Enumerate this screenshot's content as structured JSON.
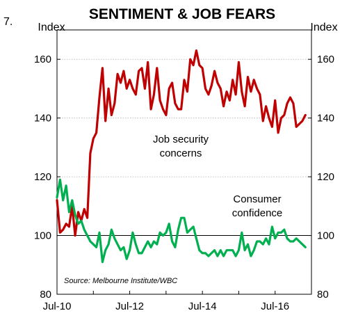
{
  "chart_data": {
    "type": "line",
    "figure_number": "7.",
    "title": "SENTIMENT & JOB FEARS",
    "ylabel_left": "Index",
    "ylabel_right": "Index",
    "ylim": [
      80,
      170
    ],
    "yticks": [
      80,
      100,
      120,
      140,
      160
    ],
    "xlim": [
      "2010-07",
      "2017-07"
    ],
    "xticks": [
      "Jul-10",
      "Jul-12",
      "Jul-14",
      "Jul-16"
    ],
    "source": "Source: Melbourne Institute/WBC",
    "reference_line": 100,
    "series": [
      {
        "name": "Job security concerns",
        "label_lines": [
          "Job security",
          "concerns"
        ],
        "color": "#C00000",
        "x": [
          "2010-07",
          "2010-08",
          "2010-09",
          "2010-10",
          "2010-11",
          "2010-12",
          "2011-01",
          "2011-02",
          "2011-03",
          "2011-04",
          "2011-05",
          "2011-06",
          "2011-07",
          "2011-08",
          "2011-09",
          "2011-10",
          "2011-11",
          "2011-12",
          "2012-01",
          "2012-02",
          "2012-03",
          "2012-04",
          "2012-05",
          "2012-06",
          "2012-07",
          "2012-08",
          "2012-09",
          "2012-10",
          "2012-11",
          "2012-12",
          "2013-01",
          "2013-02",
          "2013-03",
          "2013-04",
          "2013-05",
          "2013-06",
          "2013-07",
          "2013-08",
          "2013-09",
          "2013-10",
          "2013-11",
          "2013-12",
          "2014-01",
          "2014-02",
          "2014-03",
          "2014-04",
          "2014-05",
          "2014-06",
          "2014-07",
          "2014-08",
          "2014-09",
          "2014-10",
          "2014-11",
          "2014-12",
          "2015-01",
          "2015-02",
          "2015-03",
          "2015-04",
          "2015-05",
          "2015-06",
          "2015-07",
          "2015-08",
          "2015-09",
          "2015-10",
          "2015-11",
          "2015-12",
          "2016-01",
          "2016-02",
          "2016-03",
          "2016-04",
          "2016-05",
          "2016-06",
          "2016-07",
          "2016-08",
          "2016-09",
          "2016-10",
          "2016-11",
          "2016-12",
          "2017-01",
          "2017-02",
          "2017-03",
          "2017-04",
          "2017-05"
        ],
        "values": [
          112,
          101,
          102,
          104,
          103,
          110,
          100,
          108,
          105,
          109,
          106,
          128,
          133,
          135,
          147,
          157,
          139,
          150,
          141,
          145,
          155,
          152,
          156,
          150,
          153,
          150,
          148,
          156,
          157,
          150,
          159,
          143,
          148,
          157,
          146,
          143,
          141,
          150,
          152,
          145,
          143,
          143,
          153,
          149,
          160,
          158,
          163,
          158,
          157,
          150,
          148,
          151,
          156,
          152,
          150,
          144,
          149,
          146,
          153,
          148,
          159,
          149,
          144,
          154,
          149,
          153,
          150,
          148,
          139,
          144,
          140,
          137,
          146,
          135,
          140,
          141,
          145,
          147,
          145,
          137,
          138,
          139,
          141
        ]
      },
      {
        "name": "Consumer confidence",
        "label_lines": [
          "Consumer",
          "confidence"
        ],
        "color": "#00B050",
        "x": [
          "2010-07",
          "2010-08",
          "2010-09",
          "2010-10",
          "2010-11",
          "2010-12",
          "2011-01",
          "2011-02",
          "2011-03",
          "2011-04",
          "2011-05",
          "2011-06",
          "2011-07",
          "2011-08",
          "2011-09",
          "2011-10",
          "2011-11",
          "2011-12",
          "2012-01",
          "2012-02",
          "2012-03",
          "2012-04",
          "2012-05",
          "2012-06",
          "2012-07",
          "2012-08",
          "2012-09",
          "2012-10",
          "2012-11",
          "2012-12",
          "2013-01",
          "2013-02",
          "2013-03",
          "2013-04",
          "2013-05",
          "2013-06",
          "2013-07",
          "2013-08",
          "2013-09",
          "2013-10",
          "2013-11",
          "2013-12",
          "2014-01",
          "2014-02",
          "2014-03",
          "2014-04",
          "2014-05",
          "2014-06",
          "2014-07",
          "2014-08",
          "2014-09",
          "2014-10",
          "2014-11",
          "2014-12",
          "2015-01",
          "2015-02",
          "2015-03",
          "2015-04",
          "2015-05",
          "2015-06",
          "2015-07",
          "2015-08",
          "2015-09",
          "2015-10",
          "2015-11",
          "2015-12",
          "2016-01",
          "2016-02",
          "2016-03",
          "2016-04",
          "2016-05",
          "2016-06",
          "2016-07",
          "2016-08",
          "2016-09",
          "2016-10",
          "2016-11",
          "2016-12",
          "2017-01",
          "2017-02",
          "2017-03",
          "2017-04",
          "2017-05"
        ],
        "values": [
          113,
          119,
          112,
          117,
          108,
          112,
          107,
          104,
          105,
          102,
          100,
          98,
          97,
          96,
          101,
          91,
          95,
          97,
          102,
          99,
          97,
          95,
          96,
          92,
          95,
          101,
          97,
          94,
          94,
          96,
          98,
          96,
          98,
          97,
          101,
          100,
          101,
          104,
          98,
          96,
          102,
          106,
          106,
          101,
          102,
          103,
          99,
          95,
          94,
          94,
          93,
          94,
          95,
          93,
          95,
          93,
          95,
          95,
          95,
          93,
          95,
          101,
          95,
          97,
          93,
          95,
          98,
          98,
          97,
          99,
          97,
          103,
          99,
          101,
          101,
          102,
          99,
          98,
          98,
          99,
          98,
          97,
          96
        ]
      }
    ]
  }
}
